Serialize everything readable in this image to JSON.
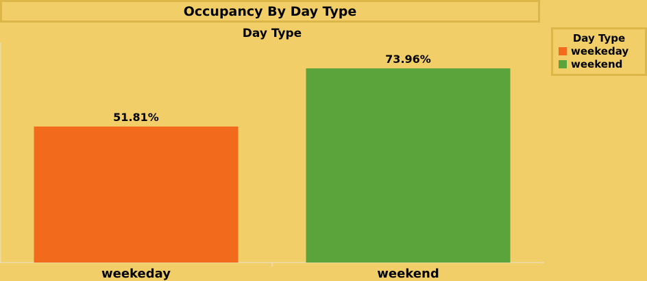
{
  "chart_data": {
    "type": "bar",
    "title": "Occupancy By Day Type",
    "header": "Day Type",
    "categories": [
      "weekeday",
      "weekend"
    ],
    "values": [
      51.81,
      73.96
    ],
    "value_labels": [
      "51.81%",
      "73.96%"
    ],
    "colors": [
      "#F26B1D",
      "#5BA33B"
    ],
    "ylim": [
      0,
      100
    ],
    "legend": {
      "title": "Day Type",
      "position": "top-right",
      "items": [
        {
          "label": "weekeday",
          "color": "#F26B1D"
        },
        {
          "label": "weekend",
          "color": "#5BA33B"
        }
      ]
    }
  }
}
